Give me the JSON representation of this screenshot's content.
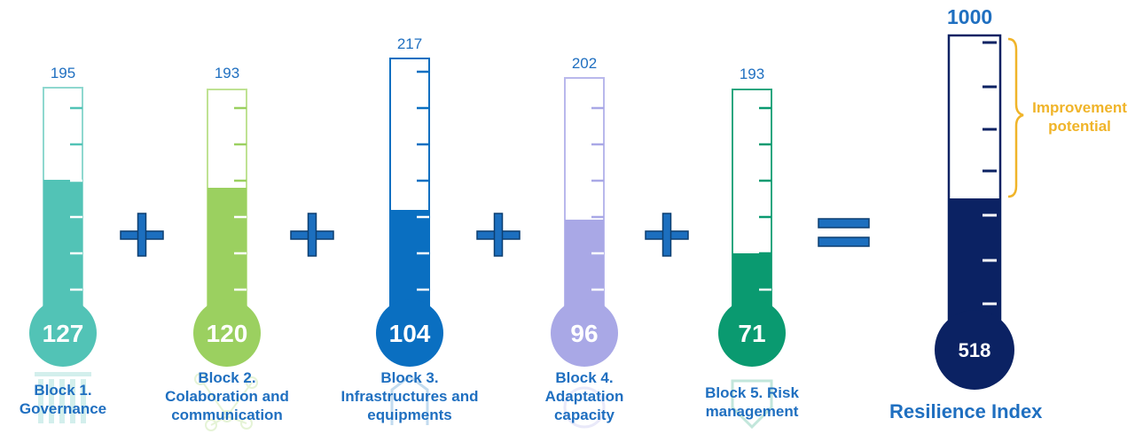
{
  "blocks": [
    {
      "max": "195",
      "value": "127",
      "label_lines": [
        "Block 1.",
        "Governance"
      ],
      "color": "#52c3b6",
      "light": "#8fd8cf",
      "icon": "building-columns-icon"
    },
    {
      "max": "193",
      "value": "120",
      "label_lines": [
        "Block 2.",
        "Colaboration and",
        "communication"
      ],
      "color": "#9bd060",
      "light": "#bfe293",
      "icon": "network-icon"
    },
    {
      "max": "217",
      "value": "104",
      "label_lines": [
        "Block 3.",
        "Infrastructures and",
        "equipments"
      ],
      "color": "#0a6fc1",
      "light": "#0a6fc1",
      "icon": "infrastructure-icon"
    },
    {
      "max": "202",
      "value": "96",
      "label_lines": [
        "Block 4.",
        "Adaptation",
        "capacity"
      ],
      "color": "#a9a8e6",
      "light": "#b9b8ec",
      "icon": "adaptation-icon"
    },
    {
      "max": "193",
      "value": "71",
      "label_lines": [
        "Block 5. Risk",
        "management"
      ],
      "color": "#0a9a70",
      "light": "#2aa67f",
      "icon": "shield-icon"
    }
  ],
  "operators": {
    "plus": "+",
    "equals": "="
  },
  "resilience": {
    "max": "1000",
    "value": "518",
    "title": "Resilience Index",
    "improvement_lines": [
      "Improvement",
      "potential"
    ],
    "color": "#0b2263",
    "accent": "#f0b429"
  }
}
